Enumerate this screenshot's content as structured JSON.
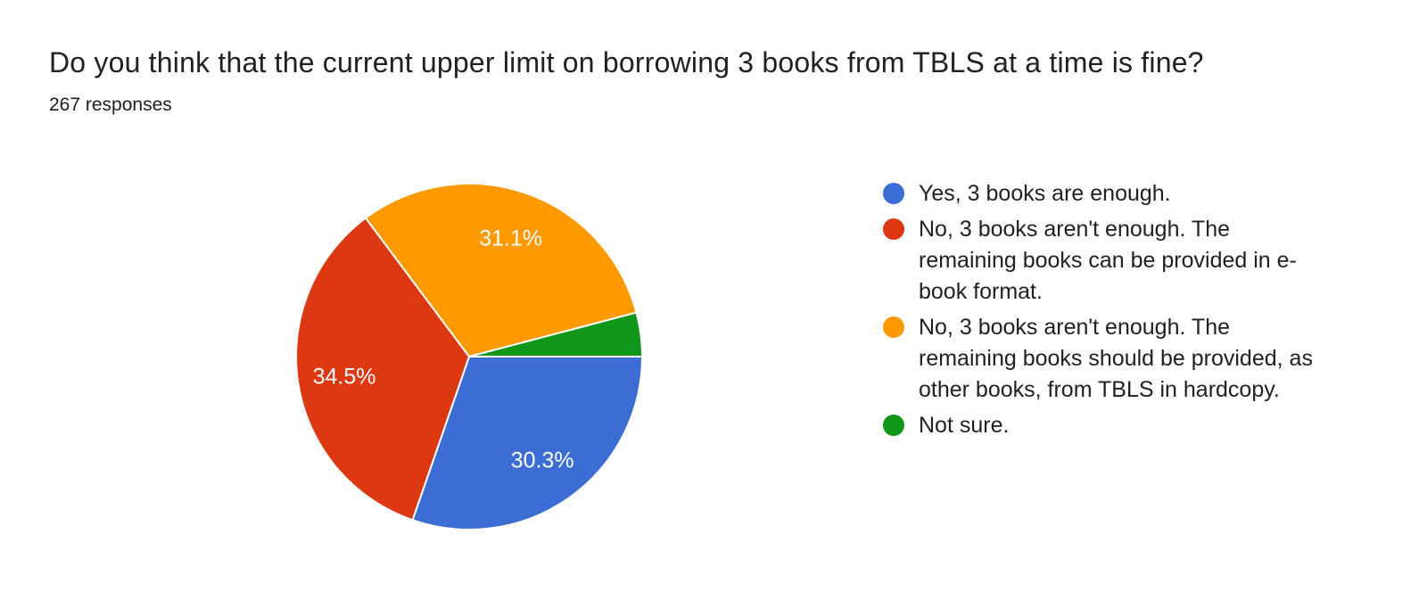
{
  "header": {
    "title": "Do you think that the current upper limit on borrowing 3 books from TBLS at a time is fine?",
    "subtitle": "267 responses"
  },
  "chart_data": {
    "type": "pie",
    "title": "Do you think that the current upper limit on borrowing 3 books from TBLS at a time is fine?",
    "responses_label": "267 responses",
    "total_responses": 267,
    "legend_position": "right",
    "start_angle_deg_clockwise_from_east": 0,
    "slice_label_color": "#ffffff",
    "slice_separator_color": "#ffffff",
    "slices": [
      {
        "label": "Yes, 3 books are enough.",
        "value": 30.3,
        "pct_label": "30.3%",
        "color": "#3C6DD5"
      },
      {
        "label": "No, 3 books aren't enough. The remaining books can be provided in e-book format.",
        "value": 34.5,
        "pct_label": "34.5%",
        "color": "#DC3912"
      },
      {
        "label": "No, 3 books aren't enough. The remaining books should be provided, as other books, from TBLS in hardcopy.",
        "value": 31.1,
        "pct_label": "31.1%",
        "color": "#FF9900"
      },
      {
        "label": "Not sure.",
        "value": 4.1,
        "pct_label": "",
        "color": "#109618"
      }
    ]
  }
}
